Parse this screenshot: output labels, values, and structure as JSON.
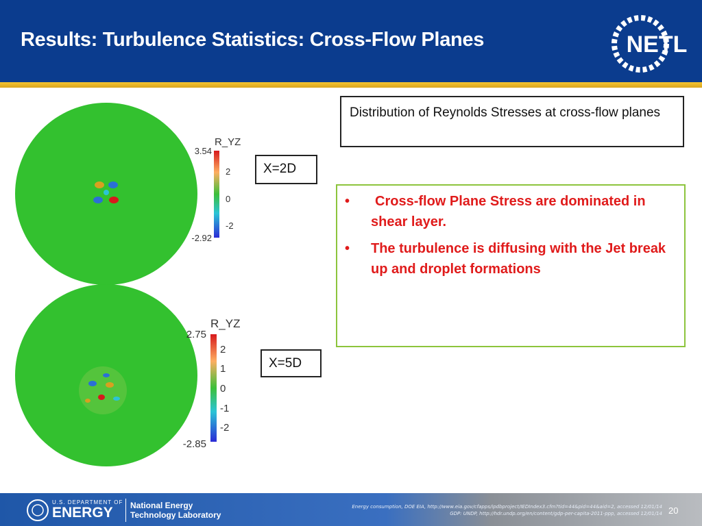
{
  "header": {
    "title": "Results:  Turbulence Statistics: Cross-Flow Planes",
    "logo": "NETL"
  },
  "plots": [
    {
      "colorbar_title": "R_YZ",
      "ticks": [
        "3.54",
        "2",
        "0",
        "-2",
        "-2.92"
      ],
      "plane_label": "X=2D"
    },
    {
      "colorbar_title": "R_YZ",
      "ticks": [
        "2.75",
        "2",
        "1",
        "0",
        "-1",
        "-2",
        "-2.85"
      ],
      "plane_label": "X=5D"
    }
  ],
  "caption": "Distribution of Reynolds Stresses at cross-flow planes",
  "bullets": [
    "Cross-flow Plane Stress are dominated in shear layer.",
    "The turbulence is diffusing  with the Jet break up and droplet formations"
  ],
  "footer": {
    "doe_small": "U.S. DEPARTMENT OF",
    "doe_big": "ENERGY",
    "lab_line1": "National Energy",
    "lab_line2": "Technology Laboratory",
    "citations": [
      "Energy consumption, DOE EIA, http://www.eia.gov/cfapps/ipdbproject/IEDIndex3.cfm?tid=44&pid=44&aid=2, accessed 12/01/14",
      "GDP: UNDP, http://hdr.undp.org/en/content/gdp-per-capita-2011-ppp, accessed 12/01/14"
    ],
    "page": "20"
  }
}
